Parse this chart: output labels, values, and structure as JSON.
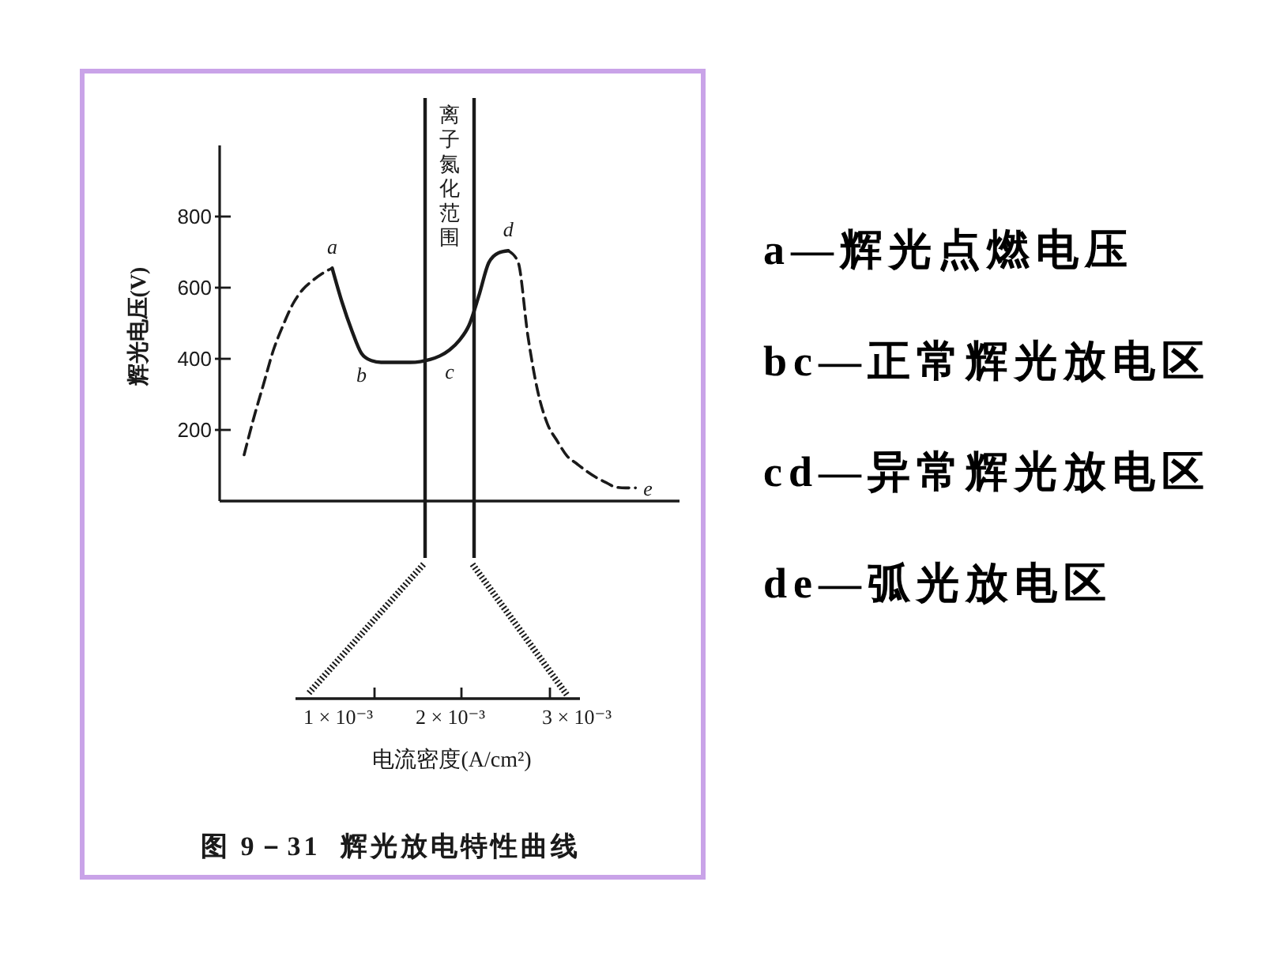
{
  "chart_data": {
    "type": "line",
    "title": "图 9－31  辉光放电特性曲线",
    "ylabel": "辉光电压(V)",
    "categories": [
      null,
      null,
      null,
      null,
      null,
      null,
      null,
      null,
      null,
      null,
      null,
      null,
      null,
      null,
      null,
      null,
      null,
      null,
      null,
      null,
      null,
      null,
      null,
      null,
      null,
      null,
      null,
      null,
      null,
      null,
      null,
      null,
      null,
      null,
      null,
      null,
      null,
      null,
      null,
      null,
      null,
      null,
      null,
      null,
      null,
      null,
      null
    ],
    "series": [
      {
        "color": "#1a1a1a",
        "line_style": "dashed",
        "values": [
          null,
          null,
          130,
          235,
          330,
          425,
          495,
          555,
          595,
          620,
          640,
          655,
          null,
          null,
          null,
          null,
          null,
          null,
          null,
          null,
          null,
          null,
          null,
          null,
          null,
          null,
          null,
          null,
          null,
          null,
          null,
          null,
          null,
          null,
          null,
          null,
          null,
          null,
          null,
          null,
          null,
          null,
          null,
          null,
          null,
          null,
          null
        ]
      },
      {
        "color": "#1a1a1a",
        "line_style": "solid",
        "values": [
          null,
          null,
          null,
          null,
          null,
          null,
          null,
          null,
          null,
          null,
          null,
          655,
          560,
          480,
          415,
          395,
          390,
          390,
          390,
          390,
          392,
          398,
          408,
          425,
          452,
          495,
          578,
          670,
          698,
          704,
          null,
          null,
          null,
          null,
          null,
          null,
          null,
          null,
          null,
          null,
          null,
          null,
          null,
          null,
          null,
          null,
          null
        ],
        "value_labels": [
          null,
          null,
          null,
          null,
          null,
          null,
          null,
          null,
          null,
          null,
          null,
          "a",
          null,
          null,
          "b",
          null,
          null,
          null,
          null,
          null,
          null,
          null,
          null,
          "c",
          null,
          null,
          null,
          null,
          null,
          null,
          null,
          null,
          null,
          null,
          null,
          null,
          null,
          null,
          null,
          null,
          null,
          null,
          null,
          null,
          null,
          null,
          null
        ]
      },
      {
        "color": "#1a1a1a",
        "line_style": "dashed",
        "values": [
          null,
          null,
          null,
          null,
          null,
          null,
          null,
          null,
          null,
          null,
          null,
          null,
          null,
          null,
          null,
          null,
          null,
          null,
          null,
          null,
          null,
          null,
          null,
          null,
          null,
          null,
          null,
          null,
          null,
          704,
          672,
          465,
          310,
          217,
          169,
          127,
          105,
          84,
          66,
          52,
          39,
          37,
          37,
          null,
          null,
          null,
          null
        ],
        "value_labels": [
          null,
          null,
          null,
          null,
          null,
          null,
          null,
          null,
          null,
          null,
          null,
          null,
          null,
          null,
          null,
          null,
          null,
          null,
          null,
          null,
          null,
          null,
          null,
          null,
          null,
          null,
          null,
          null,
          null,
          "d",
          null,
          null,
          null,
          null,
          null,
          null,
          null,
          null,
          null,
          null,
          null,
          null,
          "e",
          null,
          null,
          null,
          null
        ]
      }
    ],
    "ylim": [
      0,
      1000
    ],
    "yticks": [
      200,
      400,
      600,
      800
    ],
    "annotations": [
      "离子氮化范围",
      "1 × 10⁻³",
      "2 × 10⁻³",
      "3 × 10⁻³",
      "电流密度(A/cm²)",
      "a—辉光点燃电压",
      "bc—正常辉光放电区",
      "cd—异常辉光放电区",
      "de—弧光放电区"
    ]
  }
}
